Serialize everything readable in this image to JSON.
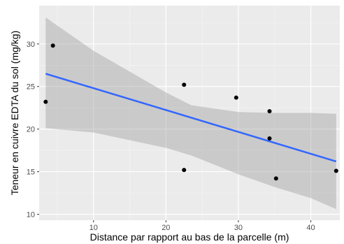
{
  "chart_data": {
    "type": "scatter",
    "title": "",
    "xlabel": "Distance par rapport au bas de la parcelle (m)",
    "ylabel": "Teneur en cuivre EDTA du sol (mg/kg)",
    "xlim": [
      2.5,
      44
    ],
    "ylim": [
      9.3,
      34.5
    ],
    "x_ticks": [
      10,
      20,
      30,
      40
    ],
    "y_ticks": [
      10,
      15,
      20,
      25,
      30
    ],
    "x_tick_labels": [
      "10",
      "20",
      "30",
      "40"
    ],
    "y_tick_labels": [
      "10",
      "15",
      "20",
      "25",
      "30"
    ],
    "grid": true,
    "points": [
      {
        "x": 3.4,
        "y": 23.2
      },
      {
        "x": 4.4,
        "y": 29.8
      },
      {
        "x": 22.5,
        "y": 25.2
      },
      {
        "x": 22.5,
        "y": 15.2
      },
      {
        "x": 29.7,
        "y": 23.7
      },
      {
        "x": 34.3,
        "y": 22.1
      },
      {
        "x": 34.3,
        "y": 18.9
      },
      {
        "x": 35.2,
        "y": 14.2
      },
      {
        "x": 43.5,
        "y": 15.1
      }
    ],
    "regression": {
      "method": "linear",
      "line": [
        {
          "x": 3.4,
          "y": 26.5
        },
        {
          "x": 43.5,
          "y": 16.2
        }
      ],
      "confidence_band": {
        "x": [
          3.4,
          10,
          20,
          23.5,
          30,
          35,
          40,
          43.5
        ],
        "upper": [
          33.1,
          29.2,
          24.3,
          22.8,
          22.0,
          21.9,
          21.9,
          21.8
        ],
        "lower": [
          20.1,
          19.6,
          17.8,
          16.9,
          14.7,
          13.2,
          11.9,
          10.6
        ]
      }
    },
    "colors": {
      "panel_background": "#ebebeb",
      "grid_major": "#ffffff",
      "grid_minor": "#f5f5f5",
      "line": "#3366ff",
      "band": "#999999",
      "point": "#000000"
    }
  }
}
